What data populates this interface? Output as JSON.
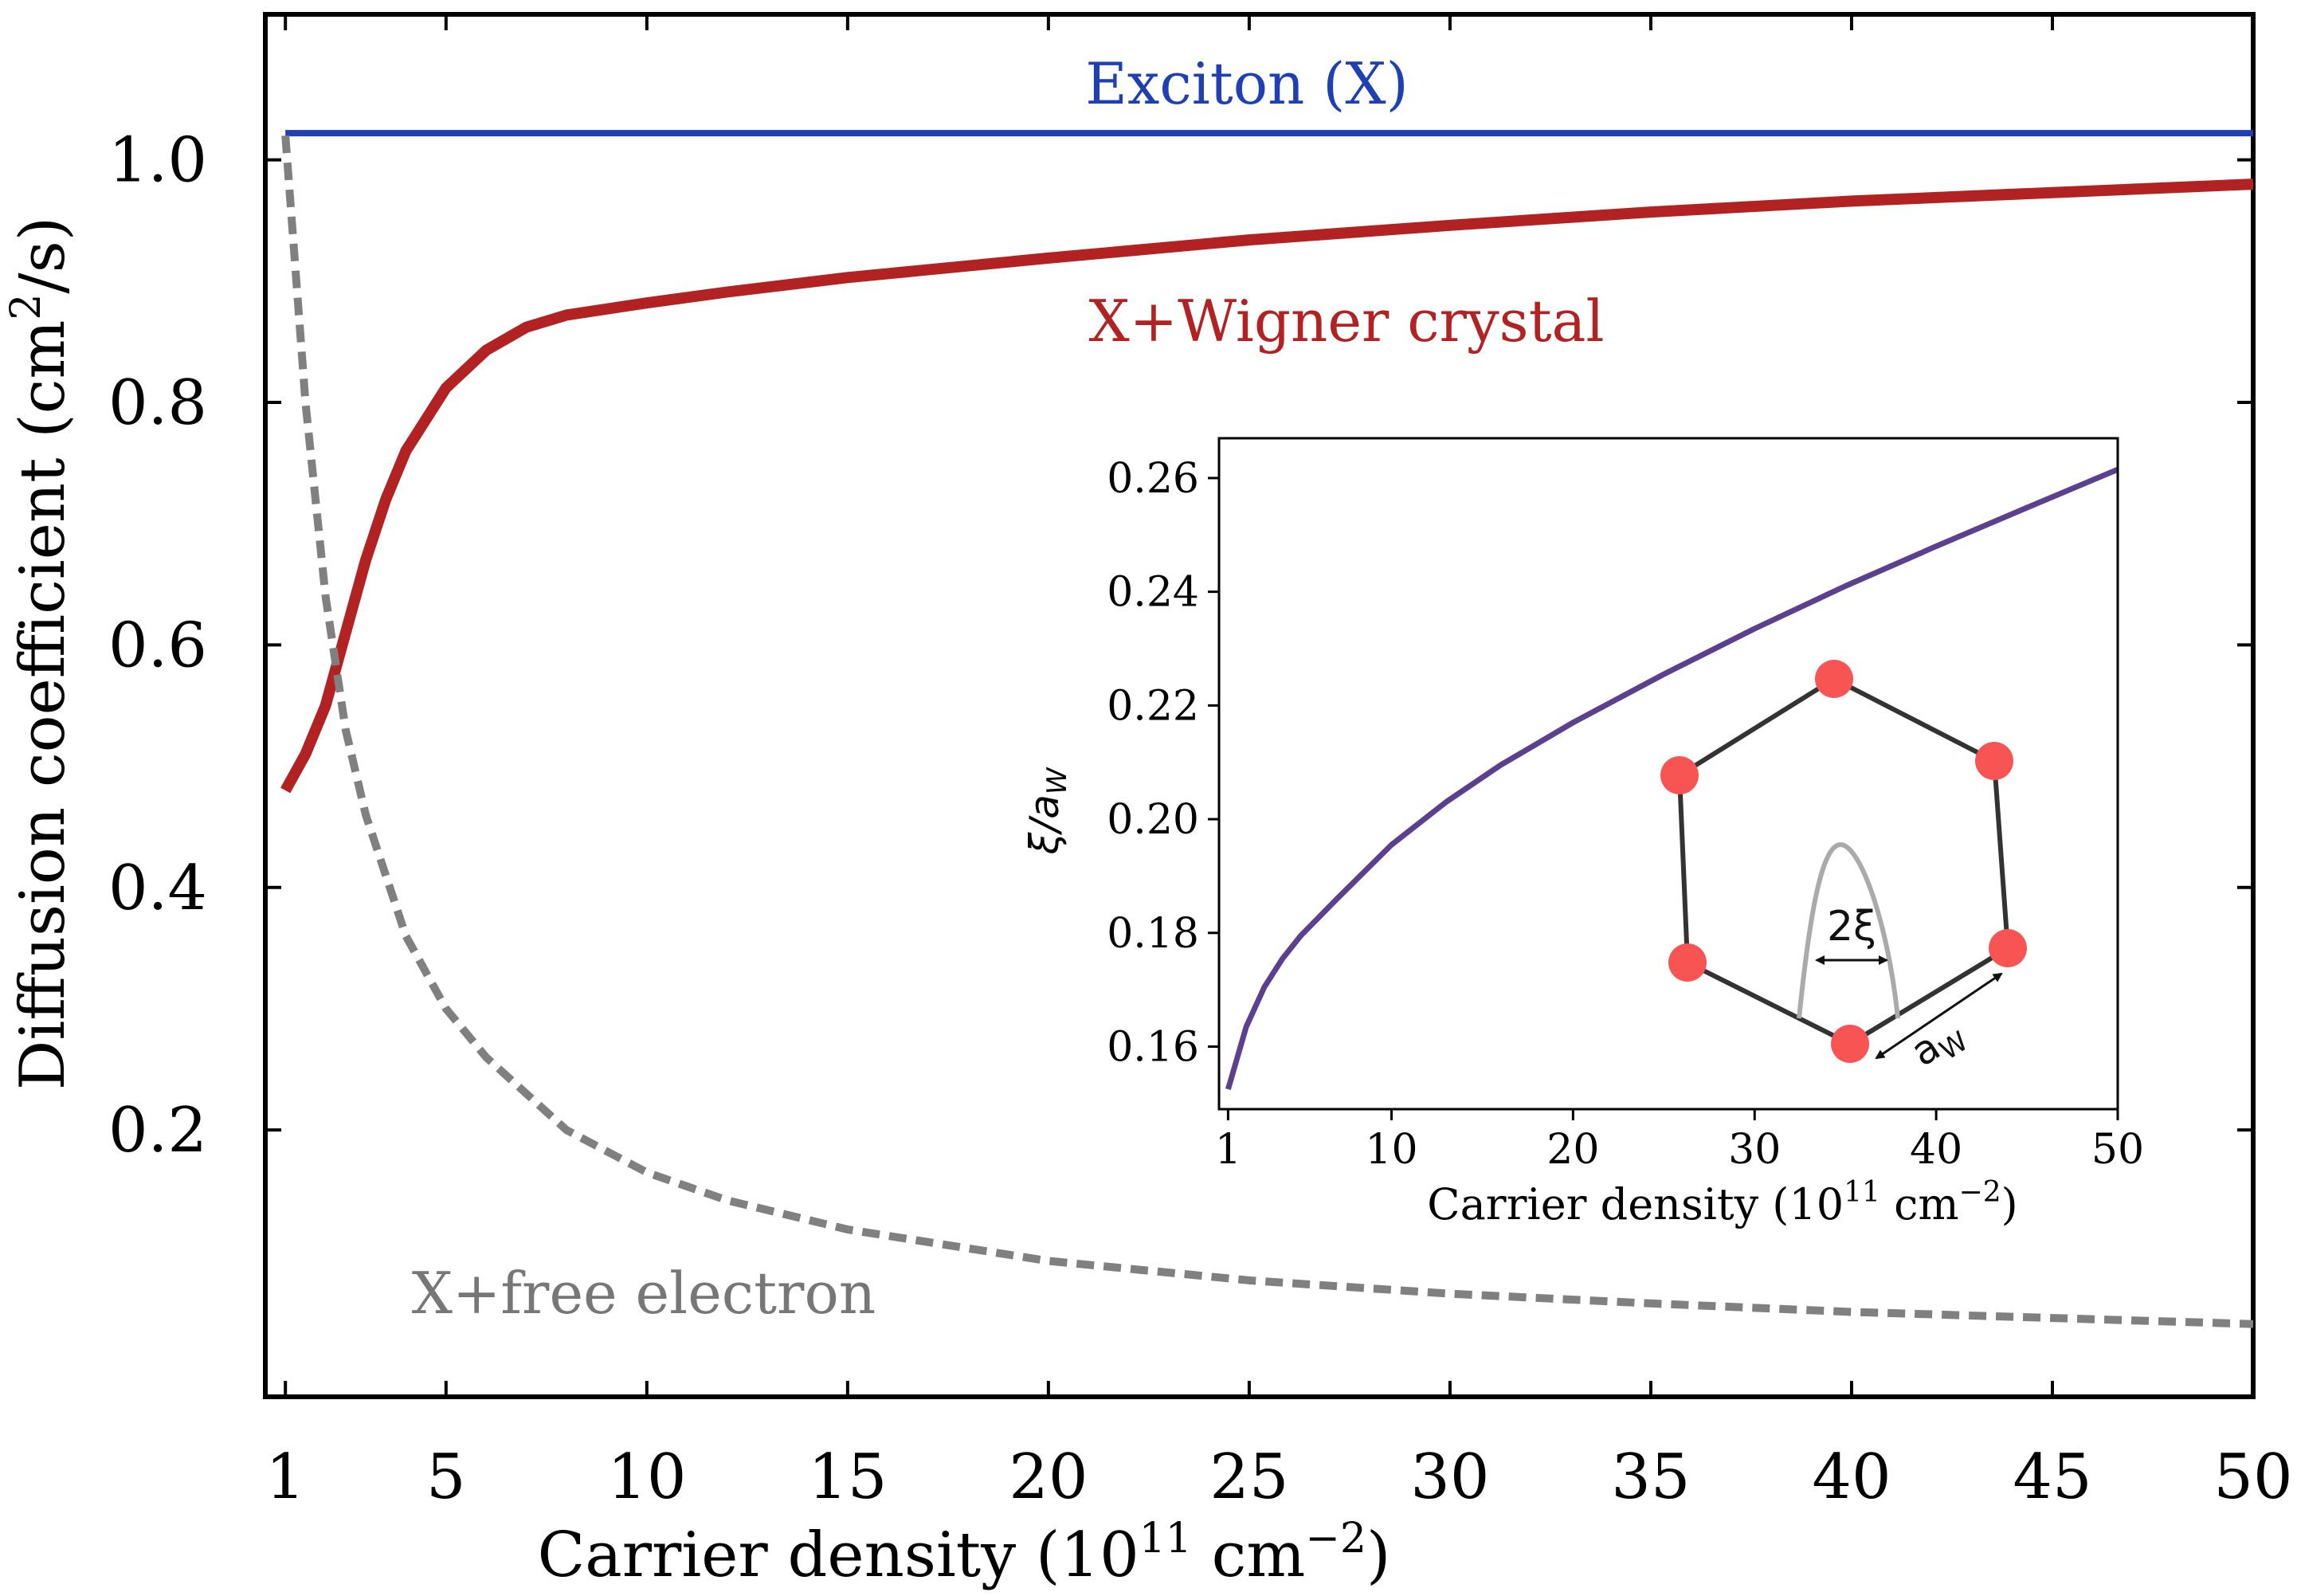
{
  "chart_data": [
    {
      "type": "line",
      "xlabel": "Carrier density (10",
      "xlabel_exp": "11",
      "xlabel_unit": " cm",
      "xlabel_unit_exp": "−2",
      "xlabel_close": ")",
      "ylabel": "Diffusion coefficient (cm",
      "ylabel_exp": "2",
      "ylabel_close": "/s)",
      "xlim": [
        0.5,
        50
      ],
      "ylim": [
        -0.02,
        1.12
      ],
      "xticks": [
        1,
        5,
        10,
        15,
        20,
        25,
        30,
        35,
        40,
        45,
        50
      ],
      "xtick_labels": [
        "1",
        "5",
        "10",
        "15",
        "20",
        "25",
        "30",
        "35",
        "40",
        "45",
        "50"
      ],
      "yticks": [
        0.2,
        0.4,
        0.6,
        0.8,
        1.0
      ],
      "ytick_labels": [
        "0.2",
        "0.4",
        "0.6",
        "0.8",
        "1.0"
      ],
      "series": [
        {
          "name": "Exciton (X)",
          "color": "#1f3fb4",
          "style": "solid",
          "x": [
            1,
            50
          ],
          "y": [
            1.022,
            1.022
          ]
        },
        {
          "name": "X+Wigner crystal",
          "color": "#b22222",
          "style": "solid",
          "x": [
            1,
            1.5,
            2,
            2.5,
            3,
            3.5,
            4,
            5,
            6,
            7,
            8,
            10,
            12,
            15,
            20,
            25,
            30,
            35,
            40,
            45,
            50
          ],
          "y": [
            0.48,
            0.51,
            0.55,
            0.61,
            0.67,
            0.72,
            0.76,
            0.812,
            0.843,
            0.862,
            0.872,
            0.882,
            0.891,
            0.903,
            0.919,
            0.934,
            0.946,
            0.957,
            0.966,
            0.973,
            0.98
          ]
        },
        {
          "name": "X+free electron",
          "color": "#808080",
          "style": "dashed",
          "x": [
            1,
            1.5,
            2,
            2.5,
            3,
            4,
            5,
            6,
            8,
            10,
            12,
            15,
            20,
            25,
            30,
            35,
            40,
            45,
            50
          ],
          "y": [
            1.02,
            0.8,
            0.64,
            0.53,
            0.46,
            0.36,
            0.3,
            0.26,
            0.2,
            0.165,
            0.142,
            0.118,
            0.092,
            0.076,
            0.065,
            0.057,
            0.05,
            0.045,
            0.04
          ]
        }
      ],
      "annotations": [
        "Exciton (X)",
        "X+Wigner crystal",
        "X+free electron"
      ]
    },
    {
      "type": "line",
      "inset": true,
      "xlabel": "Carrier density (10",
      "xlabel_exp": "11",
      "xlabel_unit": " cm",
      "xlabel_unit_exp": "−2",
      "xlabel_close": ")",
      "ylabel": "ξ/a",
      "ylabel_sub": "W",
      "xlim": [
        0.5,
        50
      ],
      "ylim": [
        0.149,
        0.267
      ],
      "xticks": [
        1,
        10,
        20,
        30,
        40,
        50
      ],
      "xtick_labels": [
        "1",
        "10",
        "20",
        "30",
        "40",
        "50"
      ],
      "yticks": [
        0.16,
        0.18,
        0.2,
        0.22,
        0.24,
        0.26
      ],
      "ytick_labels": [
        "0.16",
        "0.18",
        "0.20",
        "0.22",
        "0.24",
        "0.26"
      ],
      "series": [
        {
          "name": "xi over a_W",
          "color": "#5c3f8f",
          "style": "solid",
          "x": [
            1,
            1.5,
            2,
            3,
            4,
            5,
            7,
            10,
            13,
            16,
            20,
            25,
            30,
            35,
            40,
            45,
            50
          ],
          "y": [
            0.1525,
            0.158,
            0.1635,
            0.1705,
            0.1755,
            0.1795,
            0.186,
            0.1955,
            0.203,
            0.2095,
            0.217,
            0.2255,
            0.2335,
            0.241,
            0.248,
            0.2548,
            0.2615
          ]
        }
      ],
      "diagram": {
        "label_2xi": "2ξ",
        "label_aw": "a",
        "label_aw_sub": "W",
        "node_color": "#f95454",
        "edge_color": "#333333",
        "profile_color": "#aaaaaa"
      }
    }
  ]
}
